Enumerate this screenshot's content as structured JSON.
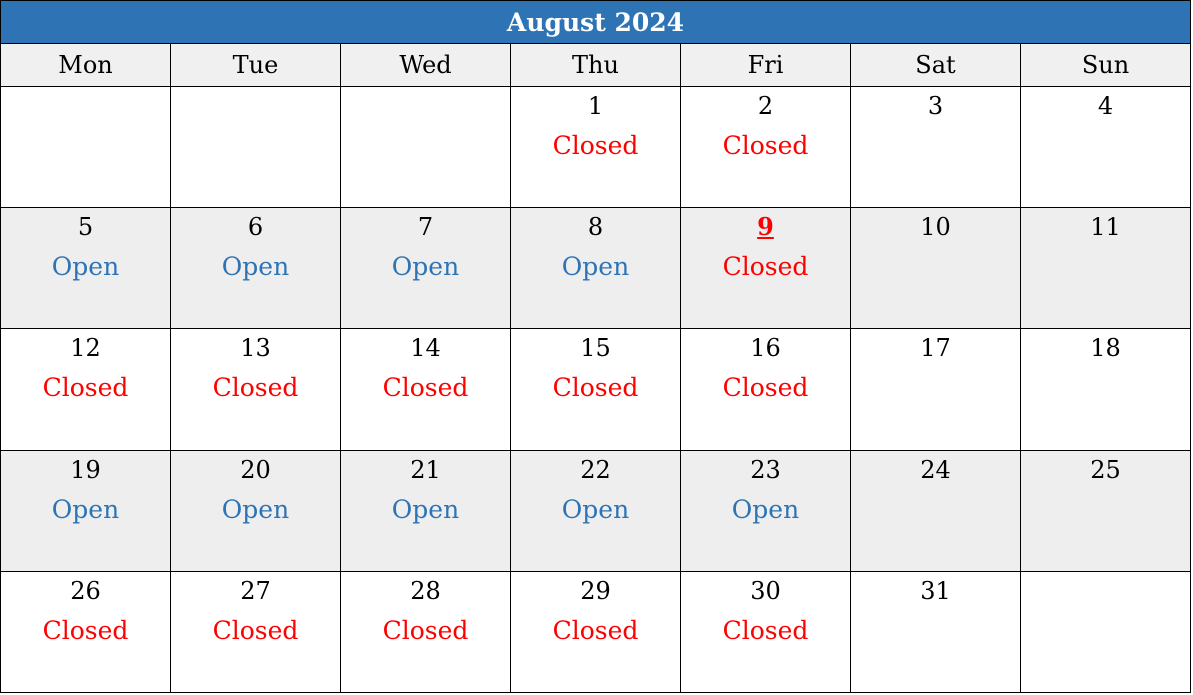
{
  "title": "August 2024",
  "weekdays": [
    "Mon",
    "Tue",
    "Wed",
    "Thu",
    "Fri",
    "Sat",
    "Sun"
  ],
  "colors": {
    "header_bg": "#2e74b5",
    "weekday_bg": "#f0f0f0",
    "shaded_row_bg": "#eeeeee",
    "closed": "#ff0000",
    "open": "#2e74b5"
  },
  "weeks": [
    [
      {
        "day": "",
        "status": ""
      },
      {
        "day": "",
        "status": ""
      },
      {
        "day": "",
        "status": ""
      },
      {
        "day": "1",
        "status": "Closed"
      },
      {
        "day": "2",
        "status": "Closed"
      },
      {
        "day": "3",
        "status": ""
      },
      {
        "day": "4",
        "status": ""
      }
    ],
    [
      {
        "day": "5",
        "status": "Open"
      },
      {
        "day": "6",
        "status": "Open"
      },
      {
        "day": "7",
        "status": "Open"
      },
      {
        "day": "8",
        "status": "Open"
      },
      {
        "day": "9",
        "status": "Closed",
        "highlight": true
      },
      {
        "day": "10",
        "status": ""
      },
      {
        "day": "11",
        "status": ""
      }
    ],
    [
      {
        "day": "12",
        "status": "Closed"
      },
      {
        "day": "13",
        "status": "Closed"
      },
      {
        "day": "14",
        "status": "Closed"
      },
      {
        "day": "15",
        "status": "Closed"
      },
      {
        "day": "16",
        "status": "Closed"
      },
      {
        "day": "17",
        "status": ""
      },
      {
        "day": "18",
        "status": ""
      }
    ],
    [
      {
        "day": "19",
        "status": "Open"
      },
      {
        "day": "20",
        "status": "Open"
      },
      {
        "day": "21",
        "status": "Open"
      },
      {
        "day": "22",
        "status": "Open"
      },
      {
        "day": "23",
        "status": "Open"
      },
      {
        "day": "24",
        "status": ""
      },
      {
        "day": "25",
        "status": ""
      }
    ],
    [
      {
        "day": "26",
        "status": "Closed"
      },
      {
        "day": "27",
        "status": "Closed"
      },
      {
        "day": "28",
        "status": "Closed"
      },
      {
        "day": "29",
        "status": "Closed"
      },
      {
        "day": "30",
        "status": "Closed"
      },
      {
        "day": "31",
        "status": ""
      },
      {
        "day": "",
        "status": ""
      }
    ]
  ]
}
